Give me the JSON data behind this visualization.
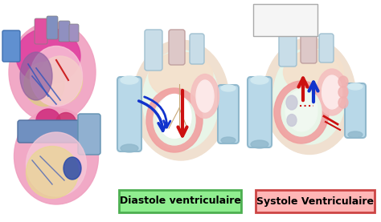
{
  "background_color": "#ffffff",
  "label1": "Diastole ventriculaire",
  "label2": "Systole Ventriculaire",
  "label1_bg": "#90ee90",
  "label2_bg": "#ffb6b6",
  "label1_border": "#4caf50",
  "label2_border": "#cc4444",
  "label_text_color": "#000000",
  "label_fontsize": 9,
  "label_fontweight": "bold",
  "fig_width": 4.74,
  "fig_height": 2.77,
  "dpi": 100
}
